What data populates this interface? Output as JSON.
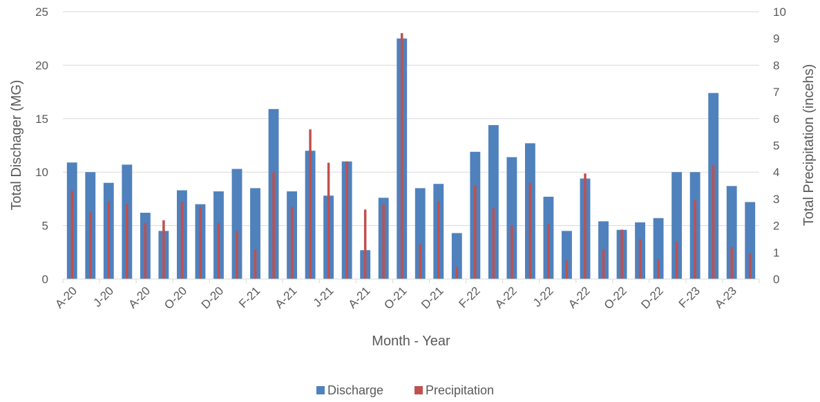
{
  "chart_data": {
    "type": "bar",
    "title": "",
    "xlabel": "Month - Year",
    "ylabel": "Total Dischager (MG)",
    "y2label": "Total Precipitation (incehs)",
    "ylim": [
      0,
      25
    ],
    "y2lim": [
      0,
      10
    ],
    "yticks": [
      "0",
      "5",
      "10",
      "15",
      "20",
      "25"
    ],
    "y2ticks": [
      "0",
      "1",
      "2",
      "3",
      "4",
      "5",
      "6",
      "7",
      "8",
      "9",
      "10"
    ],
    "grid": true,
    "legend_position": "bottom",
    "x_tick_labels": [
      "A-20",
      "J-20",
      "A-20",
      "O-20",
      "D-20",
      "F-21",
      "A-21",
      "J-21",
      "A-21",
      "O-21",
      "D-21",
      "F-22",
      "A-22",
      "J-22",
      "A-22",
      "O-22",
      "D-22",
      "F-23",
      "A-23"
    ],
    "series": [
      {
        "name": "Discharge",
        "axis": "left",
        "color": "#4f81bd",
        "values": [
          10.9,
          10.0,
          9.0,
          10.7,
          6.2,
          4.5,
          8.3,
          7.0,
          8.2,
          10.3,
          8.5,
          15.9,
          8.2,
          12.0,
          7.8,
          11.0,
          2.7,
          7.6,
          22.5,
          8.5,
          8.9,
          4.3,
          11.9,
          14.4,
          11.4,
          12.7,
          7.7,
          4.5,
          9.4,
          5.4,
          4.6,
          5.3,
          5.7,
          10.0,
          10.0,
          17.4,
          8.7,
          7.2
        ]
      },
      {
        "name": "Precipitation",
        "axis": "right",
        "color": "#c0504d",
        "values": [
          3.3,
          2.5,
          2.9,
          2.8,
          2.1,
          2.2,
          2.9,
          2.7,
          2.1,
          1.8,
          1.1,
          4.0,
          2.7,
          5.6,
          4.35,
          4.4,
          2.6,
          2.8,
          9.2,
          1.3,
          2.9,
          0.45,
          3.5,
          2.65,
          2.0,
          3.6,
          2.05,
          0.7,
          3.95,
          1.1,
          1.85,
          1.5,
          0.75,
          1.4,
          2.95,
          4.25,
          1.2,
          0.95
        ]
      }
    ]
  }
}
